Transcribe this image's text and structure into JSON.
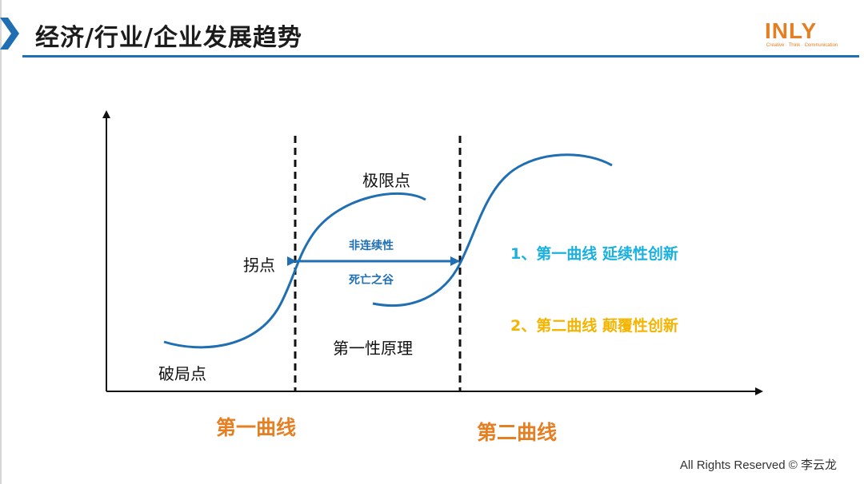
{
  "header": {
    "title": "经济/行业/企业发展趋势",
    "logo_text": "INLY",
    "logo_tagline": "Creative · Think · Communication",
    "accent_color": "#1f6fb2",
    "logo_color": "#e67e22"
  },
  "diagram": {
    "labels": {
      "break_point": "破局点",
      "inflection_point": "拐点",
      "limit_point": "极限点",
      "discontinuity": "非连续性",
      "valley_of_death": "死亡之谷",
      "first_principle": "第一性原理"
    },
    "curve_names": {
      "first_curve": "第一曲线",
      "second_curve": "第二曲线"
    },
    "legend": [
      {
        "text": "1、第一曲线 延续性创新",
        "color": "#1ab0e0"
      },
      {
        "text": "2、第二曲线 颠覆性创新",
        "color": "#f5b400"
      }
    ],
    "curve_color": "#1f6fb2",
    "axis_color": "#111111"
  },
  "footer": {
    "copyright": "All Rights Reserved © 李云龙"
  }
}
